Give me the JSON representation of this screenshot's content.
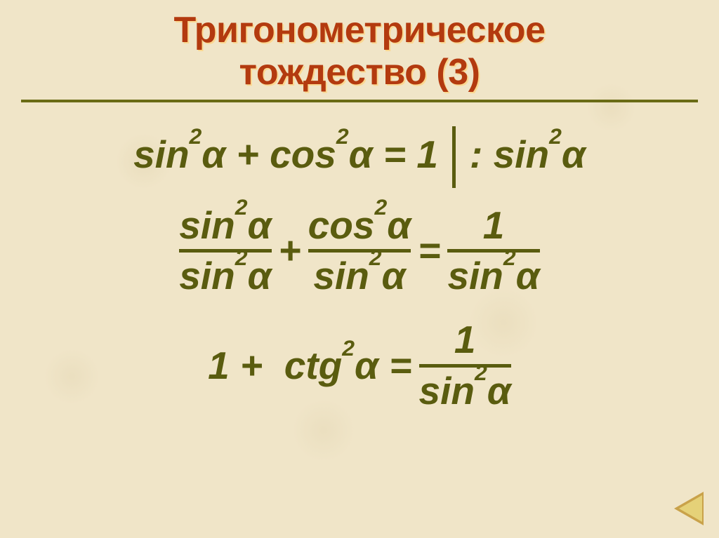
{
  "title_line1": "Тригонометрическое",
  "title_line2": "тождество (3)",
  "colors": {
    "title": "#b33a0f",
    "title_shadow": "rgba(255,210,120,.7)",
    "rule": "#6a6b15",
    "math": "#5a5c0f",
    "background": "#f0e5c8",
    "nav_outer": "#c9a24a",
    "nav_inner": "#e5d178"
  },
  "typography": {
    "title_fontsize": 52,
    "math_fontsize": 55,
    "title_weight": 900,
    "math_weight": 900,
    "math_style": "italic"
  },
  "eq1": {
    "left": "sin<sup>2</sup>α + cos<sup>2</sup>α = 1",
    "right": ": sin<sup>2</sup>α"
  },
  "eq2": {
    "f1_num": "sin<sup>2</sup>α",
    "f1_den": "sin<sup>2</sup>α",
    "op1": "+",
    "f2_num": "cos<sup>2</sup>α",
    "f2_den": "sin<sup>2</sup>α",
    "op2": "=",
    "f3_num": "1",
    "f3_den": "sin<sup>2</sup>α"
  },
  "eq3": {
    "left": "1 +&nbsp; ctg<sup>2</sup>α =",
    "f_num": "1",
    "f_den": "sin<sup>2</sup>α"
  }
}
